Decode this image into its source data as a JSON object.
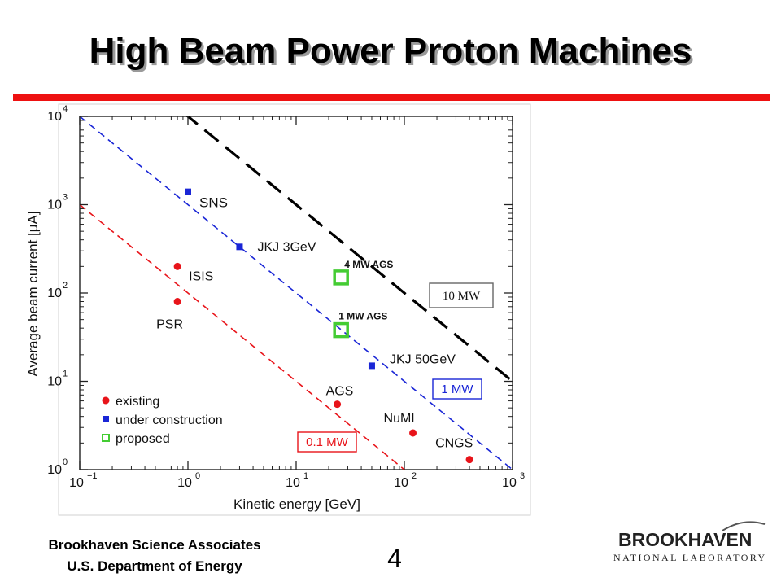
{
  "slide": {
    "title": "High Beam Power Proton Machines",
    "footer_line1": "Brookhaven Science Associates",
    "footer_line2": "U.S. Department of Energy",
    "page_number": "4",
    "logo_main": "BROOKHAVEN",
    "logo_sub": "NATIONAL LABORATORY",
    "accent_color": "#ee1111"
  },
  "chart_data": {
    "type": "scatter",
    "xlabel": "Kinetic energy [GeV]",
    "ylabel": "Average beam current [μA]",
    "xscale": "log",
    "yscale": "log",
    "xlim": [
      0.1,
      1000
    ],
    "ylim": [
      1,
      10000
    ],
    "x_ticks": [
      {
        "base": "10",
        "exp": "−1",
        "value": 0.1
      },
      {
        "base": "10",
        "exp": "0",
        "value": 1
      },
      {
        "base": "10",
        "exp": "1",
        "value": 10
      },
      {
        "base": "10",
        "exp": "2",
        "value": 100
      },
      {
        "base": "10",
        "exp": "3",
        "value": 1000
      }
    ],
    "y_ticks": [
      {
        "base": "10",
        "exp": "0",
        "value": 1
      },
      {
        "base": "10",
        "exp": "1",
        "value": 10
      },
      {
        "base": "10",
        "exp": "2",
        "value": 100
      },
      {
        "base": "10",
        "exp": "3",
        "value": 1000
      },
      {
        "base": "10",
        "exp": "4",
        "value": 10000
      }
    ],
    "grid": false,
    "legend_position": "bottom-left",
    "legend": [
      {
        "label": "existing",
        "marker": "circle",
        "color": "#e8141a"
      },
      {
        "label": "under construction",
        "marker": "square",
        "color": "#1a26d6"
      },
      {
        "label": "proposed",
        "marker": "open-square",
        "color": "#44cc33"
      }
    ],
    "points": [
      {
        "label": "SNS",
        "x": 1.0,
        "y": 1400,
        "marker": "square",
        "color": "#1a26d6"
      },
      {
        "label": "JKJ 3GeV",
        "x": 3.0,
        "y": 333,
        "marker": "square",
        "color": "#1a26d6"
      },
      {
        "label": "JKJ 50GeV",
        "x": 50,
        "y": 15,
        "marker": "square",
        "color": "#1a26d6"
      },
      {
        "label": "ISIS",
        "x": 0.8,
        "y": 200,
        "marker": "circle",
        "color": "#e8141a"
      },
      {
        "label": "PSR",
        "x": 0.8,
        "y": 80,
        "marker": "circle",
        "color": "#e8141a"
      },
      {
        "label": "AGS",
        "x": 24,
        "y": 5.5,
        "marker": "circle",
        "color": "#e8141a"
      },
      {
        "label": "NuMI",
        "x": 120,
        "y": 2.6,
        "marker": "circle",
        "color": "#e8141a"
      },
      {
        "label": "CNGS",
        "x": 400,
        "y": 1.3,
        "marker": "circle",
        "color": "#e8141a"
      },
      {
        "label": "4 MW AGS",
        "x": 26,
        "y": 150,
        "marker": "open-square",
        "color": "#44cc33"
      },
      {
        "label": "1 MW AGS",
        "x": 26,
        "y": 38,
        "marker": "open-square",
        "color": "#44cc33"
      }
    ],
    "power_lines": [
      {
        "label": "0.1 MW",
        "power_mw": 0.1,
        "color": "#e8141a",
        "style": "dashed"
      },
      {
        "label": "1 MW",
        "power_mw": 1,
        "color": "#1a26d6",
        "style": "dashed"
      },
      {
        "label": "10 MW",
        "power_mw": 10,
        "color": "#000000",
        "style": "long-dashed"
      }
    ]
  }
}
